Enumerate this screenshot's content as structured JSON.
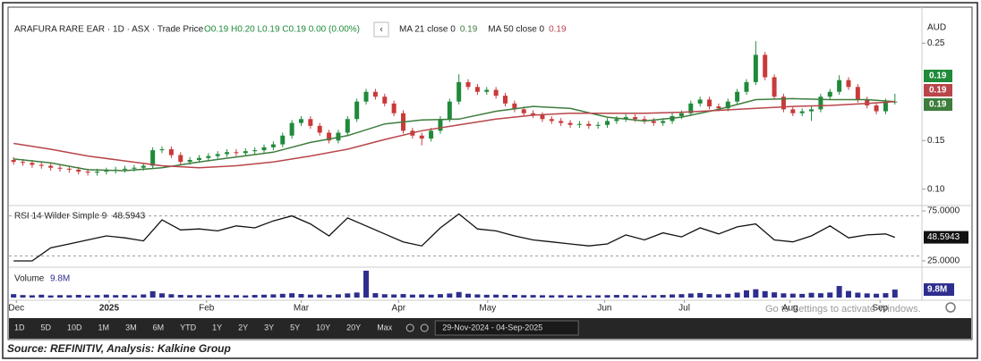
{
  "chart_data": [
    {
      "type": "candlestick",
      "title": "ARAFURA RARE EAR · 1D · ASX · Trade Price",
      "ohlc_text": "O0.19 H0.20 L0.19 C0.19 0.00 (0.00%)",
      "axis_unit": "AUD",
      "up_color": "#1f8a3a",
      "down_color": "#c93a3a",
      "xlim": [
        0,
        96
      ],
      "ylim": [
        0.085,
        0.276
      ],
      "yticks": [
        0.25,
        0.15,
        {
          "value": 0.1,
          "label": "0.10"
        }
      ],
      "open": [
        0.13,
        0.128,
        0.127,
        0.125,
        0.124,
        0.122,
        0.121,
        0.12,
        0.118,
        0.117,
        0.118,
        0.119,
        0.12,
        0.121,
        0.122,
        0.124,
        0.14,
        0.141,
        0.135,
        0.128,
        0.13,
        0.132,
        0.134,
        0.136,
        0.138,
        0.137,
        0.139,
        0.14,
        0.143,
        0.146,
        0.155,
        0.168,
        0.172,
        0.165,
        0.158,
        0.15,
        0.158,
        0.172,
        0.19,
        0.2,
        0.195,
        0.188,
        0.178,
        0.16,
        0.155,
        0.152,
        0.16,
        0.172,
        0.19,
        0.21,
        0.205,
        0.2,
        0.202,
        0.196,
        0.188,
        0.182,
        0.178,
        0.176,
        0.172,
        0.17,
        0.168,
        0.166,
        0.167,
        0.165,
        0.166,
        0.17,
        0.172,
        0.174,
        0.172,
        0.17,
        0.168,
        0.17,
        0.175,
        0.178,
        0.188,
        0.192,
        0.185,
        0.183,
        0.19,
        0.2,
        0.21,
        0.238,
        0.215,
        0.195,
        0.182,
        0.178,
        0.18,
        0.182,
        0.195,
        0.2,
        0.212,
        0.205,
        0.192,
        0.186,
        0.18,
        0.19
      ],
      "high": [
        0.133,
        0.131,
        0.13,
        0.128,
        0.127,
        0.125,
        0.124,
        0.123,
        0.121,
        0.121,
        0.122,
        0.123,
        0.124,
        0.125,
        0.127,
        0.143,
        0.144,
        0.144,
        0.138,
        0.133,
        0.135,
        0.137,
        0.139,
        0.141,
        0.141,
        0.142,
        0.143,
        0.146,
        0.149,
        0.158,
        0.171,
        0.175,
        0.175,
        0.168,
        0.161,
        0.161,
        0.175,
        0.193,
        0.203,
        0.203,
        0.198,
        0.191,
        0.181,
        0.163,
        0.158,
        0.163,
        0.175,
        0.193,
        0.218,
        0.213,
        0.208,
        0.205,
        0.205,
        0.199,
        0.191,
        0.185,
        0.181,
        0.179,
        0.175,
        0.173,
        0.171,
        0.17,
        0.17,
        0.169,
        0.173,
        0.175,
        0.177,
        0.177,
        0.175,
        0.173,
        0.173,
        0.178,
        0.181,
        0.191,
        0.195,
        0.195,
        0.188,
        0.193,
        0.203,
        0.213,
        0.252,
        0.241,
        0.218,
        0.198,
        0.185,
        0.183,
        0.185,
        0.198,
        0.203,
        0.217,
        0.215,
        0.208,
        0.195,
        0.189,
        0.193,
        0.198
      ],
      "low": [
        0.125,
        0.124,
        0.122,
        0.121,
        0.119,
        0.118,
        0.117,
        0.115,
        0.114,
        0.114,
        0.115,
        0.116,
        0.117,
        0.118,
        0.119,
        0.121,
        0.137,
        0.132,
        0.125,
        0.125,
        0.127,
        0.129,
        0.131,
        0.133,
        0.134,
        0.134,
        0.136,
        0.137,
        0.14,
        0.143,
        0.152,
        0.165,
        0.162,
        0.155,
        0.147,
        0.147,
        0.155,
        0.169,
        0.187,
        0.192,
        0.185,
        0.175,
        0.157,
        0.152,
        0.145,
        0.149,
        0.157,
        0.169,
        0.187,
        0.202,
        0.197,
        0.197,
        0.193,
        0.185,
        0.179,
        0.175,
        0.173,
        0.169,
        0.167,
        0.165,
        0.163,
        0.163,
        0.162,
        0.162,
        0.163,
        0.167,
        0.169,
        0.169,
        0.167,
        0.165,
        0.165,
        0.167,
        0.172,
        0.175,
        0.185,
        0.182,
        0.18,
        0.18,
        0.187,
        0.197,
        0.207,
        0.212,
        0.192,
        0.179,
        0.175,
        0.175,
        0.17,
        0.179,
        0.192,
        0.197,
        0.202,
        0.189,
        0.183,
        0.177,
        0.177,
        0.187
      ],
      "close": [
        0.128,
        0.127,
        0.125,
        0.124,
        0.122,
        0.121,
        0.12,
        0.118,
        0.117,
        0.118,
        0.119,
        0.12,
        0.121,
        0.122,
        0.124,
        0.14,
        0.141,
        0.135,
        0.128,
        0.13,
        0.132,
        0.134,
        0.136,
        0.138,
        0.137,
        0.139,
        0.14,
        0.143,
        0.146,
        0.155,
        0.168,
        0.172,
        0.165,
        0.158,
        0.15,
        0.158,
        0.172,
        0.19,
        0.2,
        0.195,
        0.188,
        0.178,
        0.16,
        0.155,
        0.152,
        0.16,
        0.172,
        0.19,
        0.21,
        0.205,
        0.2,
        0.202,
        0.196,
        0.188,
        0.182,
        0.178,
        0.176,
        0.172,
        0.17,
        0.168,
        0.166,
        0.167,
        0.165,
        0.166,
        0.17,
        0.172,
        0.174,
        0.172,
        0.17,
        0.168,
        0.17,
        0.175,
        0.178,
        0.188,
        0.192,
        0.185,
        0.183,
        0.19,
        0.2,
        0.21,
        0.238,
        0.215,
        0.195,
        0.182,
        0.178,
        0.18,
        0.182,
        0.195,
        0.2,
        0.212,
        0.205,
        0.192,
        0.186,
        0.18,
        0.19,
        0.19
      ],
      "series": [
        {
          "name": "MA 21 close 0",
          "color": "#3d7d3d",
          "x": [
            0,
            4,
            8,
            12,
            16,
            20,
            24,
            28,
            32,
            36,
            40,
            44,
            48,
            52,
            56,
            60,
            64,
            68,
            72,
            76,
            80,
            84,
            88,
            92,
            95
          ],
          "values": [
            0.131,
            0.127,
            0.12,
            0.119,
            0.122,
            0.128,
            0.133,
            0.138,
            0.148,
            0.155,
            0.167,
            0.171,
            0.172,
            0.18,
            0.185,
            0.183,
            0.174,
            0.17,
            0.174,
            0.182,
            0.192,
            0.193,
            0.192,
            0.192,
            0.19
          ]
        },
        {
          "name": "MA 50 close 0",
          "color": "#b8454a",
          "x": [
            0,
            4,
            8,
            12,
            16,
            20,
            24,
            28,
            32,
            36,
            40,
            44,
            48,
            52,
            56,
            60,
            64,
            68,
            72,
            76,
            80,
            84,
            88,
            92,
            95
          ],
          "values": [
            0.147,
            0.141,
            0.134,
            0.129,
            0.124,
            0.122,
            0.124,
            0.128,
            0.134,
            0.141,
            0.151,
            0.16,
            0.166,
            0.172,
            0.176,
            0.178,
            0.178,
            0.178,
            0.179,
            0.181,
            0.183,
            0.185,
            0.186,
            0.188,
            0.19
          ]
        }
      ]
    },
    {
      "type": "line",
      "title": "RSI 14 Wilder Simple 9",
      "color": "#111111",
      "xlim": [
        0,
        96
      ],
      "ylim": [
        21.4,
        78.6
      ],
      "yticks": [
        {
          "value": 75,
          "label": "75.0000"
        },
        {
          "value": 25,
          "label": "25.0000"
        }
      ],
      "levels": [
        70,
        30
      ],
      "x": [
        0,
        2,
        4,
        6,
        8,
        10,
        12,
        14,
        16,
        18,
        20,
        22,
        24,
        26,
        28,
        30,
        32,
        34,
        36,
        38,
        40,
        42,
        44,
        46,
        48,
        50,
        52,
        54,
        56,
        58,
        60,
        62,
        64,
        66,
        68,
        70,
        72,
        74,
        76,
        78,
        80,
        82,
        84,
        86,
        88,
        90,
        92,
        94,
        95
      ],
      "values": [
        25,
        25,
        38,
        42,
        46,
        50,
        48,
        45,
        66,
        56,
        57,
        55,
        60,
        58,
        65,
        70,
        62,
        50,
        68,
        60,
        52,
        44,
        40,
        58,
        72,
        57,
        55,
        50,
        46,
        44,
        42,
        40,
        42,
        51,
        46,
        53,
        49,
        58,
        52,
        59,
        62,
        46,
        44,
        50,
        60,
        48,
        51,
        52,
        48.5943
      ]
    },
    {
      "type": "bar",
      "title": "Volume",
      "last_value_label": "9.8M",
      "color": "#2e2e8f",
      "xlim": [
        0,
        96
      ],
      "ylim": [
        0,
        34000000
      ],
      "values": [
        4200000,
        3100000,
        2800000,
        3500000,
        2600000,
        3000000,
        2900000,
        3300000,
        2700000,
        3100000,
        3600000,
        3000000,
        3200000,
        2900000,
        3800000,
        7800000,
        5200000,
        4100000,
        3300000,
        3000000,
        3100000,
        2800000,
        3400000,
        2900000,
        3000000,
        2700000,
        3200000,
        3500000,
        3900000,
        4600000,
        5300000,
        4400000,
        3600000,
        3800000,
        3200000,
        4000000,
        5100000,
        6200000,
        33000000,
        5400000,
        4100000,
        3800000,
        4300000,
        3600000,
        3900000,
        3500000,
        4200000,
        5000000,
        6800000,
        4700000,
        3900000,
        3400000,
        3600000,
        3200000,
        3300000,
        3000000,
        3100000,
        2900000,
        2800000,
        3000000,
        2700000,
        2900000,
        2600000,
        2800000,
        3000000,
        3200000,
        3100000,
        2900000,
        2700000,
        3000000,
        3200000,
        3800000,
        4200000,
        5000000,
        5600000,
        4300000,
        3900000,
        4600000,
        6100000,
        8800000,
        10200000,
        7900000,
        6400000,
        5200000,
        4800000,
        4500000,
        5800000,
        5300000,
        6200000,
        14200000,
        8100000,
        6000000,
        5100000,
        4700000,
        5400000,
        9800000
      ],
      "xticks": [
        {
          "value": 0.8,
          "label": "Dec"
        },
        {
          "value": 10.8,
          "label": "2025"
        },
        {
          "value": 21.3,
          "label": "Feb"
        },
        {
          "value": 31.5,
          "label": "Mar"
        },
        {
          "value": 42,
          "label": "Apr"
        },
        {
          "value": 51.6,
          "label": "May"
        },
        {
          "value": 64.2,
          "label": "Jun"
        },
        {
          "value": 72.8,
          "label": "Jul"
        },
        {
          "value": 84.2,
          "label": "Aug"
        },
        {
          "value": 93.9,
          "label": "Sep"
        }
      ]
    }
  ],
  "toolbar": {
    "ranges": [
      "1D",
      "5D",
      "10D",
      "1M",
      "3M",
      "6M",
      "YTD",
      "1Y",
      "2Y",
      "3Y",
      "5Y",
      "10Y",
      "20Y",
      "Max"
    ],
    "date_range": "29-Nov-2024 - 04-Sep-2025"
  },
  "watermark": "Go to Settings to activate Windows.",
  "caption": "Source: REFINITIV, Analysis: Kalkine Group"
}
